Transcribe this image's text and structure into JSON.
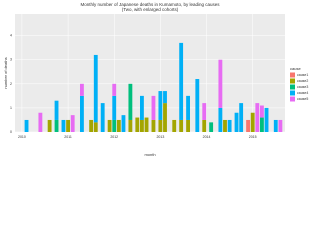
{
  "chart_data": {
    "type": "stacked-bar",
    "title": "Monthly number of Japanese deaths in Kumamoto, by leading causes",
    "subtitle": "(Two, with enlarged cohorts)",
    "x_label": "month",
    "y_label": "number of deaths",
    "legend_title": "cause",
    "x": [
      2010.1,
      2010.4,
      2010.6,
      2010.75,
      2010.9,
      2011.0,
      2011.1,
      2011.3,
      2011.5,
      2011.6,
      2011.75,
      2011.9,
      2012.0,
      2012.1,
      2012.2,
      2012.35,
      2012.5,
      2012.6,
      2012.7,
      2012.85,
      2013.0,
      2013.1,
      2013.3,
      2013.45,
      2013.6,
      2013.8,
      2013.95,
      2014.1,
      2014.3,
      2014.4,
      2014.5,
      2014.65,
      2014.75,
      2014.9,
      2015.0,
      2015.1,
      2015.2,
      2015.3,
      2015.5,
      2015.6
    ],
    "series": [
      {
        "name": "cause1",
        "color": "#F8766D",
        "values": [
          0,
          0,
          0,
          0,
          0,
          0,
          0,
          0,
          0,
          0,
          0,
          0,
          0,
          0,
          0,
          0,
          0,
          0,
          0,
          0,
          0,
          0,
          0,
          0,
          0,
          0,
          0,
          0,
          0,
          0,
          0,
          0,
          0,
          0.5,
          0,
          0,
          0,
          0,
          0,
          0
        ]
      },
      {
        "name": "cause2",
        "color": "#A3A500",
        "values": [
          0,
          0,
          0.5,
          0,
          0,
          0.5,
          0,
          0,
          0.5,
          0.4,
          0,
          0.5,
          0,
          0.5,
          0,
          0.5,
          0.6,
          0.5,
          0.6,
          0.5,
          0.5,
          1.2,
          0.5,
          0.5,
          0.5,
          0,
          0.5,
          0,
          0,
          0.5,
          0,
          0,
          0,
          0,
          0.8,
          0,
          0,
          0,
          0,
          0
        ]
      },
      {
        "name": "cause3",
        "color": "#00BF7D",
        "values": [
          0,
          0,
          0,
          0.5,
          0,
          0,
          0,
          0,
          0,
          0,
          0,
          0,
          0.5,
          0,
          0,
          1.5,
          0,
          0,
          0,
          0,
          0,
          0,
          0,
          0,
          0,
          0,
          0,
          0.4,
          0,
          0,
          0,
          0,
          0,
          0,
          0,
          0,
          0.6,
          0,
          0,
          0
        ]
      },
      {
        "name": "cause4",
        "color": "#00B0F6",
        "values": [
          0.5,
          0,
          0,
          0.8,
          0.5,
          0,
          0,
          1.5,
          0,
          2.8,
          1.2,
          0,
          1,
          0,
          0.7,
          0,
          0,
          1,
          0,
          0,
          1.2,
          0.5,
          0,
          3.2,
          1,
          2.2,
          0,
          0,
          1,
          0,
          0.5,
          0.8,
          1.2,
          0,
          0,
          0,
          0,
          1,
          0.5,
          0
        ]
      },
      {
        "name": "cause5",
        "color": "#E76BF3",
        "values": [
          0,
          0.8,
          0,
          0,
          0,
          0,
          0.7,
          0.5,
          0,
          0,
          0,
          0,
          0.5,
          0,
          0,
          0,
          0,
          0,
          0,
          1,
          0,
          0,
          0,
          0,
          0,
          0,
          0.7,
          0,
          2,
          0,
          0,
          0,
          0,
          0,
          0,
          1.2,
          0.5,
          0,
          0,
          0.5
        ]
      }
    ],
    "xlim": [
      2009.85,
      2015.7
    ],
    "xticks": [
      2010,
      2011,
      2012,
      2013,
      2014,
      2015
    ],
    "ylim": [
      0,
      4.9
    ],
    "yticks": [
      0,
      1,
      2,
      3,
      4
    ],
    "grid": true,
    "legend_position": "right"
  }
}
